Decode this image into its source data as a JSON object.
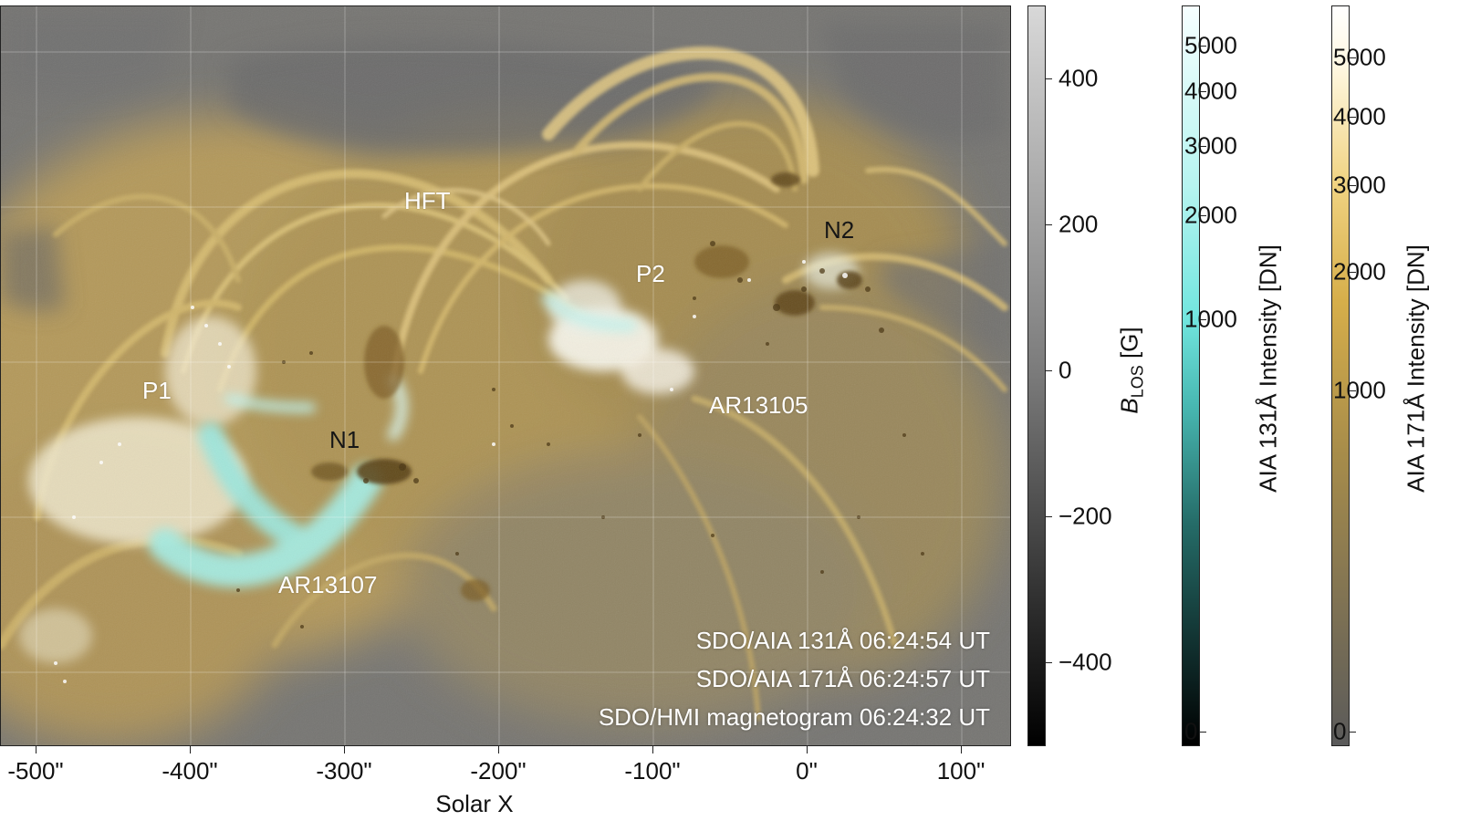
{
  "image": {
    "region_labels": {
      "hft": "HFT",
      "p1": "P1",
      "n1": "N1",
      "p2": "P2",
      "n2": "N2",
      "ar13105": "AR13105",
      "ar13107": "AR13107"
    },
    "timestamps": [
      "SDO/AIA 131Å 06:24:54 UT",
      "SDO/AIA 171Å 06:24:57 UT",
      "SDO/HMI magnetogram 06:24:32 UT"
    ],
    "colors": {
      "corona_gold": "#c9ad62",
      "background_gray": "#747474",
      "flare_cyan": "#9fe6dd",
      "plage_white": "#f4f1e6",
      "sunspot_dark": "#5a4518"
    }
  },
  "x_axis": {
    "label": "Solar X",
    "ticks": [
      "-500\"",
      "-400\"",
      "-300\"",
      "-200\"",
      "-100\"",
      "0\"",
      "100\""
    ]
  },
  "colorbars": {
    "blos": {
      "title_main": "B",
      "title_sub": "LOS",
      "title_unit": " [G]",
      "ticks": [
        "400",
        "200",
        "0",
        "−200",
        "−400"
      ]
    },
    "aia131": {
      "title": "AIA 131Å Intensity [DN]",
      "ticks": [
        "5000",
        "4000",
        "3000",
        "2000",
        "1000",
        "0"
      ]
    },
    "aia171": {
      "title": "AIA 171Å Intensity [DN]",
      "ticks": [
        "5000",
        "4000",
        "3000",
        "2000",
        "1000",
        "0"
      ]
    }
  }
}
